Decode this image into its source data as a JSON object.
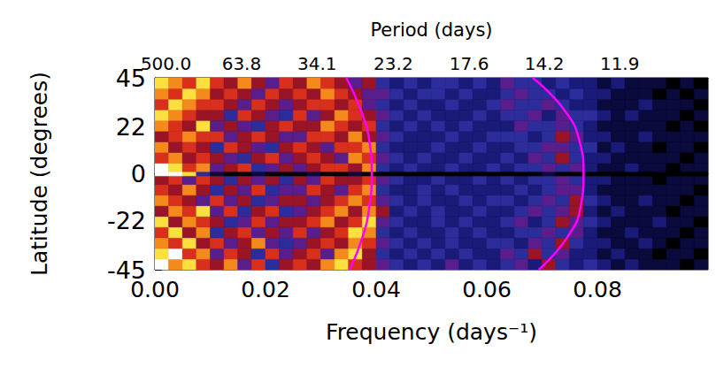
{
  "chart_data": {
    "type": "heatmap",
    "x_label": "Frequency (days⁻¹)",
    "y_label": "Latitude (degrees)",
    "x2_label": "Period (days)",
    "xlim": [
      0,
      0.1
    ],
    "ylim": [
      -45,
      45
    ],
    "xticks": [
      {
        "value": 0,
        "label": "0.00"
      },
      {
        "value": 0.02,
        "label": "0.02"
      },
      {
        "value": 0.04,
        "label": "0.04"
      },
      {
        "value": 0.06,
        "label": "0.06"
      },
      {
        "value": 0.08,
        "label": "0.08"
      }
    ],
    "yticks": [
      -45,
      -22,
      0,
      22,
      45
    ],
    "x2ticks": [
      {
        "value": 0.002,
        "label": "500.0"
      },
      {
        "value": 0.01567,
        "label": "63.8"
      },
      {
        "value": 0.02933,
        "label": "34.1"
      },
      {
        "value": 0.0431,
        "label": "23.2"
      },
      {
        "value": 0.05682,
        "label": "17.6"
      },
      {
        "value": 0.07042,
        "label": "14.2"
      },
      {
        "value": 0.08403,
        "label": "11.9"
      }
    ],
    "grid": false,
    "x_edges": [
      0,
      0.0025,
      0.005,
      0.0075,
      0.01,
      0.0125,
      0.015,
      0.0175,
      0.02,
      0.0225,
      0.025,
      0.0275,
      0.03,
      0.0325,
      0.035,
      0.0375,
      0.04,
      0.0425,
      0.045,
      0.0475,
      0.05,
      0.0525,
      0.055,
      0.0575,
      0.06,
      0.0625,
      0.065,
      0.0675,
      0.07,
      0.0725,
      0.075,
      0.0775,
      0.08,
      0.0825,
      0.085,
      0.0875,
      0.09,
      0.0925,
      0.095,
      0.0975,
      0.1
    ],
    "y_edges": [
      -45,
      -40,
      -35,
      -30,
      -25,
      -20,
      -15,
      -10,
      -5,
      -1,
      1,
      5,
      10,
      15,
      20,
      25,
      30,
      35,
      40,
      45
    ],
    "cells": [
      [
        9,
        7,
        8,
        6,
        5,
        7,
        4,
        6,
        3,
        5,
        6,
        5,
        7,
        8,
        6,
        5,
        4,
        3,
        2,
        3,
        2,
        4,
        2,
        3,
        2,
        3,
        4,
        2,
        5,
        3,
        2,
        3,
        2,
        1,
        2,
        1,
        1,
        1,
        0,
        1
      ],
      [
        8,
        9,
        6,
        7,
        4,
        6,
        5,
        3,
        6,
        4,
        5,
        6,
        4,
        7,
        8,
        5,
        3,
        2,
        3,
        2,
        3,
        2,
        3,
        2,
        2,
        4,
        3,
        5,
        3,
        4,
        2,
        2,
        1,
        2,
        1,
        1,
        0,
        1,
        1,
        0
      ],
      [
        7,
        6,
        8,
        5,
        6,
        4,
        5,
        7,
        4,
        3,
        4,
        5,
        6,
        5,
        7,
        6,
        4,
        3,
        2,
        3,
        2,
        3,
        2,
        2,
        3,
        3,
        2,
        4,
        3,
        5,
        3,
        2,
        2,
        1,
        1,
        2,
        1,
        0,
        1,
        1
      ],
      [
        6,
        8,
        5,
        7,
        3,
        5,
        6,
        4,
        5,
        4,
        6,
        4,
        5,
        6,
        8,
        7,
        3,
        2,
        3,
        2,
        2,
        3,
        2,
        3,
        2,
        2,
        3,
        3,
        4,
        3,
        4,
        2,
        1,
        1,
        2,
        1,
        1,
        1,
        0,
        1
      ],
      [
        8,
        5,
        7,
        6,
        5,
        3,
        4,
        6,
        4,
        5,
        5,
        6,
        7,
        5,
        6,
        8,
        4,
        3,
        2,
        2,
        3,
        2,
        3,
        2,
        2,
        3,
        4,
        2,
        3,
        5,
        4,
        3,
        2,
        1,
        1,
        1,
        2,
        1,
        1,
        0
      ],
      [
        5,
        7,
        6,
        8,
        4,
        6,
        3,
        5,
        6,
        3,
        4,
        5,
        6,
        7,
        5,
        7,
        5,
        2,
        3,
        2,
        3,
        2,
        2,
        3,
        2,
        2,
        3,
        4,
        3,
        4,
        5,
        2,
        1,
        2,
        1,
        1,
        1,
        0,
        1,
        1
      ],
      [
        7,
        6,
        5,
        4,
        6,
        4,
        5,
        3,
        4,
        5,
        5,
        4,
        5,
        6,
        7,
        6,
        4,
        3,
        2,
        3,
        2,
        2,
        3,
        2,
        3,
        3,
        2,
        3,
        4,
        3,
        5,
        3,
        2,
        1,
        1,
        2,
        1,
        1,
        0,
        1
      ],
      [
        6,
        5,
        7,
        5,
        3,
        5,
        4,
        6,
        3,
        4,
        4,
        6,
        5,
        4,
        6,
        7,
        3,
        2,
        2,
        3,
        2,
        3,
        2,
        2,
        2,
        2,
        3,
        2,
        3,
        4,
        4,
        2,
        1,
        1,
        1,
        1,
        1,
        1,
        1,
        0
      ],
      [
        5,
        6,
        4,
        6,
        5,
        3,
        5,
        4,
        5,
        3,
        5,
        4,
        6,
        5,
        5,
        6,
        4,
        3,
        2,
        2,
        3,
        2,
        2,
        3,
        2,
        3,
        2,
        3,
        3,
        4,
        3,
        2,
        2,
        1,
        1,
        1,
        0,
        1,
        1,
        1
      ],
      [
        9,
        9,
        8,
        3,
        1,
        0,
        0,
        1,
        0,
        0,
        0,
        1,
        0,
        0,
        1,
        0,
        0,
        0,
        0,
        0,
        0,
        0,
        0,
        0,
        0,
        0,
        0,
        0,
        1,
        0,
        0,
        0,
        0,
        0,
        0,
        0,
        0,
        0,
        0,
        0
      ],
      [
        9,
        8,
        6,
        7,
        4,
        5,
        6,
        3,
        4,
        5,
        4,
        5,
        6,
        6,
        5,
        7,
        3,
        2,
        3,
        2,
        2,
        3,
        2,
        2,
        3,
        2,
        3,
        3,
        4,
        3,
        4,
        2,
        1,
        1,
        2,
        1,
        1,
        0,
        1,
        1
      ],
      [
        6,
        7,
        5,
        6,
        5,
        4,
        3,
        5,
        6,
        4,
        5,
        6,
        5,
        4,
        7,
        6,
        4,
        3,
        2,
        3,
        2,
        2,
        3,
        2,
        2,
        3,
        2,
        4,
        3,
        5,
        3,
        2,
        2,
        1,
        1,
        1,
        1,
        1,
        0,
        1
      ],
      [
        7,
        5,
        6,
        5,
        3,
        6,
        5,
        4,
        3,
        5,
        6,
        5,
        4,
        6,
        6,
        7,
        3,
        2,
        2,
        2,
        3,
        2,
        2,
        3,
        2,
        2,
        3,
        3,
        4,
        4,
        3,
        3,
        1,
        2,
        1,
        1,
        0,
        1,
        1,
        0
      ],
      [
        5,
        6,
        7,
        6,
        6,
        4,
        5,
        6,
        5,
        4,
        4,
        6,
        6,
        5,
        7,
        5,
        4,
        3,
        2,
        2,
        2,
        3,
        2,
        2,
        3,
        3,
        3,
        2,
        3,
        5,
        4,
        2,
        2,
        1,
        1,
        2,
        1,
        1,
        1,
        1
      ],
      [
        7,
        6,
        5,
        8,
        4,
        5,
        4,
        3,
        5,
        6,
        5,
        5,
        7,
        6,
        5,
        6,
        3,
        2,
        3,
        2,
        3,
        2,
        3,
        2,
        2,
        2,
        4,
        3,
        3,
        4,
        3,
        2,
        1,
        1,
        1,
        1,
        1,
        0,
        1,
        0
      ],
      [
        8,
        7,
        6,
        5,
        5,
        3,
        6,
        5,
        4,
        3,
        6,
        4,
        5,
        7,
        6,
        5,
        4,
        3,
        2,
        3,
        2,
        2,
        2,
        3,
        2,
        3,
        3,
        4,
        2,
        4,
        3,
        3,
        2,
        1,
        2,
        1,
        1,
        1,
        0,
        1
      ],
      [
        6,
        8,
        7,
        6,
        6,
        5,
        4,
        6,
        5,
        4,
        5,
        6,
        6,
        5,
        6,
        4,
        3,
        2,
        3,
        2,
        2,
        3,
        2,
        2,
        3,
        4,
        3,
        3,
        4,
        3,
        2,
        2,
        1,
        1,
        1,
        2,
        1,
        1,
        1,
        0
      ],
      [
        7,
        6,
        8,
        7,
        5,
        6,
        5,
        4,
        6,
        5,
        6,
        5,
        7,
        6,
        5,
        4,
        4,
        3,
        2,
        3,
        3,
        2,
        3,
        2,
        2,
        3,
        4,
        3,
        3,
        2,
        3,
        2,
        2,
        1,
        1,
        1,
        0,
        1,
        0,
        1
      ],
      [
        8,
        7,
        6,
        8,
        6,
        5,
        7,
        5,
        4,
        6,
        5,
        7,
        6,
        5,
        4,
        5,
        3,
        2,
        3,
        2,
        3,
        3,
        2,
        3,
        2,
        4,
        3,
        3,
        2,
        3,
        2,
        2,
        1,
        2,
        1,
        1,
        1,
        0,
        1,
        0
      ]
    ],
    "color_range": [
      0,
      9
    ],
    "colors": [
      "#000000",
      "#0a0a3c",
      "#1a1a78",
      "#2c2c9a",
      "#5a1e8c",
      "#9a1428",
      "#d8301c",
      "#f58a1c",
      "#fde040",
      "#ffffff"
    ],
    "curves": [
      {
        "color": "#ff00ff",
        "lat": [
          -45,
          -30,
          -15,
          0,
          15,
          30,
          45
        ],
        "freq": [
          0.0352,
          0.0375,
          0.0388,
          0.0392,
          0.0388,
          0.0372,
          0.0346
        ]
      },
      {
        "color": "#ff00ff",
        "lat": [
          -45,
          -30,
          -15,
          0,
          15,
          30,
          45
        ],
        "freq": [
          0.0694,
          0.0745,
          0.077,
          0.0775,
          0.0768,
          0.074,
          0.0683
        ]
      }
    ]
  }
}
